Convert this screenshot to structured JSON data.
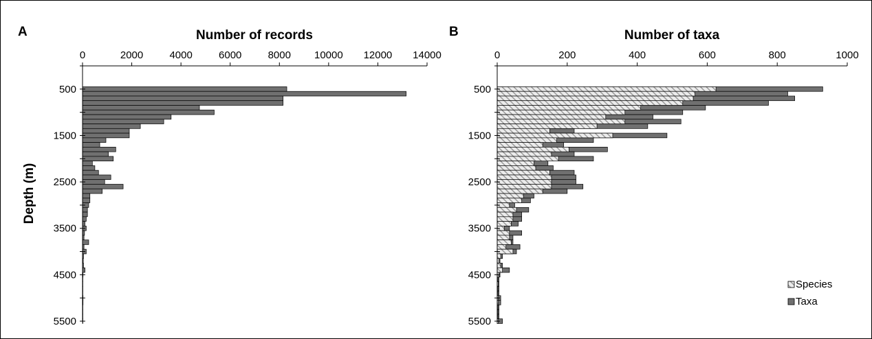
{
  "figure": {
    "colors": {
      "bar": "#707070",
      "bar_stroke": "#000000",
      "species_fill": "#ececec",
      "hatch": "#9a9a9a"
    }
  },
  "chart_data": [
    {
      "type": "bar",
      "orientation": "horizontal",
      "panel": "A",
      "title": "",
      "xlabel": "Number of records",
      "ylabel": "Depth (m)",
      "xlim": [
        0,
        14000
      ],
      "ylim": [
        0,
        5500
      ],
      "y_inverted": true,
      "xticks": [
        "0",
        "2000",
        "4000",
        "6000",
        "8000",
        "10000",
        "12000",
        "14000"
      ],
      "yticks": [
        "500",
        "1500",
        "2500",
        "3500",
        "4500",
        "5500"
      ],
      "bin_size": 100,
      "depths": [
        500,
        600,
        700,
        800,
        900,
        1000,
        1100,
        1200,
        1300,
        1400,
        1500,
        1600,
        1700,
        1800,
        1900,
        2000,
        2100,
        2200,
        2300,
        2400,
        2500,
        2600,
        2700,
        2800,
        2900,
        3000,
        3100,
        3200,
        3300,
        3400,
        3500,
        3600,
        3700,
        3800,
        3900,
        4000,
        4100,
        4200,
        4300,
        4400,
        4500,
        4600,
        4700,
        4800,
        4900,
        5000,
        5100,
        5200,
        5300,
        5400,
        5500
      ],
      "values": [
        8300,
        13150,
        8150,
        8150,
        4750,
        5350,
        3600,
        3300,
        2350,
        1900,
        1900,
        950,
        700,
        1350,
        1050,
        1250,
        400,
        500,
        650,
        1150,
        900,
        1650,
        800,
        300,
        300,
        250,
        200,
        200,
        150,
        100,
        150,
        80,
        60,
        250,
        60,
        150,
        40,
        30,
        40,
        100,
        20,
        10,
        10,
        10,
        10,
        20,
        20,
        10,
        10,
        10,
        10
      ]
    },
    {
      "type": "bar",
      "orientation": "horizontal",
      "stacked_overlay": true,
      "panel": "B",
      "title": "",
      "xlabel": "Number of taxa",
      "ylabel": "",
      "xlim": [
        0,
        1000
      ],
      "ylim": [
        0,
        5500
      ],
      "y_inverted": true,
      "xticks": [
        "0",
        "200",
        "400",
        "600",
        "800",
        "1000"
      ],
      "yticks": [
        "500",
        "1500",
        "2500",
        "3500",
        "4500",
        "5500"
      ],
      "bin_size": 100,
      "legend": {
        "position": "bottom-right",
        "entries": [
          "Species",
          "Taxa"
        ]
      },
      "depths": [
        500,
        600,
        700,
        800,
        900,
        1000,
        1100,
        1200,
        1300,
        1400,
        1500,
        1600,
        1700,
        1800,
        1900,
        2000,
        2100,
        2200,
        2300,
        2400,
        2500,
        2600,
        2700,
        2800,
        2900,
        3000,
        3100,
        3200,
        3300,
        3400,
        3500,
        3600,
        3700,
        3800,
        3900,
        4000,
        4100,
        4200,
        4300,
        4400,
        4500,
        4600,
        4700,
        4800,
        4900,
        5000,
        5100,
        5200,
        5300,
        5400,
        5500
      ],
      "series": [
        {
          "name": "Species",
          "pattern": "hatched",
          "values": [
            625,
            565,
            560,
            530,
            410,
            365,
            310,
            365,
            285,
            150,
            330,
            170,
            130,
            205,
            155,
            175,
            105,
            110,
            150,
            155,
            155,
            155,
            130,
            75,
            70,
            35,
            55,
            45,
            45,
            40,
            20,
            35,
            35,
            40,
            25,
            45,
            10,
            5,
            10,
            15,
            5,
            2,
            3,
            2,
            2,
            3,
            3,
            2,
            2,
            2,
            3
          ]
        },
        {
          "name": "Taxa",
          "pattern": "solid",
          "values": [
            930,
            830,
            850,
            775,
            595,
            530,
            445,
            525,
            430,
            220,
            485,
            275,
            190,
            315,
            220,
            275,
            145,
            160,
            220,
            225,
            225,
            245,
            200,
            105,
            95,
            50,
            90,
            70,
            70,
            60,
            35,
            70,
            45,
            45,
            65,
            55,
            15,
            8,
            15,
            35,
            8,
            5,
            5,
            5,
            5,
            10,
            10,
            5,
            5,
            5,
            15
          ]
        }
      ]
    }
  ]
}
